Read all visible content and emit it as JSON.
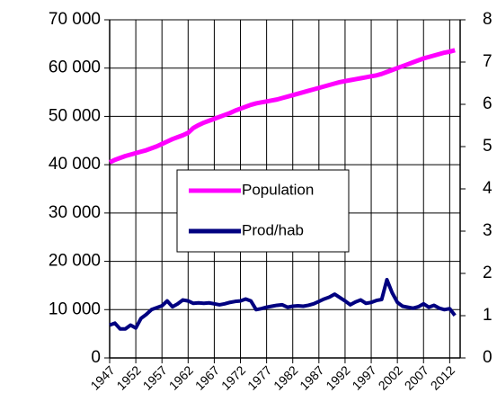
{
  "chart_data": {
    "type": "line",
    "x": [
      1947,
      1948,
      1949,
      1950,
      1951,
      1952,
      1953,
      1954,
      1955,
      1956,
      1957,
      1958,
      1959,
      1960,
      1961,
      1962,
      1963,
      1964,
      1965,
      1966,
      1967,
      1968,
      1969,
      1970,
      1971,
      1972,
      1973,
      1974,
      1975,
      1976,
      1977,
      1978,
      1979,
      1980,
      1981,
      1982,
      1983,
      1984,
      1985,
      1986,
      1987,
      1988,
      1989,
      1990,
      1991,
      1992,
      1993,
      1994,
      1995,
      1996,
      1997,
      1998,
      1999,
      2000,
      2001,
      2002,
      2003,
      2004,
      2005,
      2006,
      2007,
      2008,
      2009,
      2010,
      2011,
      2012,
      2013
    ],
    "series": [
      {
        "name": "Population",
        "color": "#ff00ff",
        "values": [
          40500,
          41000,
          41400,
          41800,
          42100,
          42400,
          42700,
          43000,
          43400,
          43800,
          44300,
          44800,
          45300,
          45700,
          46100,
          46600,
          47600,
          48200,
          48700,
          49100,
          49500,
          49900,
          50300,
          50700,
          51200,
          51600,
          52000,
          52400,
          52700,
          52900,
          53100,
          53300,
          53500,
          53800,
          54100,
          54400,
          54700,
          55000,
          55300,
          55600,
          55900,
          56200,
          56500,
          56800,
          57100,
          57300,
          57500,
          57700,
          57900,
          58100,
          58300,
          58500,
          58800,
          59200,
          59600,
          60000,
          60400,
          60800,
          61200,
          61600,
          62000,
          62300,
          62600,
          62900,
          63200,
          63400,
          63700
        ]
      },
      {
        "name": "Prod/hab",
        "color": "#000080",
        "values": [
          6800,
          7200,
          6000,
          6000,
          6800,
          6200,
          8200,
          9000,
          10000,
          10400,
          10800,
          11800,
          10600,
          11200,
          12000,
          11800,
          11300,
          11400,
          11300,
          11400,
          11200,
          11000,
          11200,
          11500,
          11700,
          11800,
          12200,
          11800,
          10000,
          10200,
          10500,
          10700,
          10900,
          11000,
          10500,
          10700,
          10800,
          10700,
          10900,
          11200,
          11700,
          12200,
          12600,
          13200,
          12500,
          11800,
          11000,
          11600,
          12000,
          11300,
          11500,
          11900,
          12100,
          16200,
          13500,
          11500,
          10700,
          10500,
          10300,
          10600,
          11200,
          10500,
          10900,
          10300,
          10000,
          10200,
          8800
        ]
      }
    ],
    "xlim": [
      1947,
      2014
    ],
    "xticks": [
      1947,
      1952,
      1957,
      1962,
      1967,
      1972,
      1977,
      1982,
      1987,
      1992,
      1997,
      2002,
      2007,
      2012
    ],
    "ylim": [
      0,
      70000
    ],
    "yticks": [
      0,
      {
        "value": 10000,
        "label": "10 000"
      },
      {
        "value": 20000,
        "label": "20 000"
      },
      {
        "value": 30000,
        "label": "30 000"
      },
      {
        "value": 40000,
        "label": "40 000"
      },
      {
        "value": 50000,
        "label": "50 000"
      },
      {
        "value": 60000,
        "label": "60 000"
      },
      {
        "value": 70000,
        "label": "70 000"
      }
    ],
    "y2lim": [
      0,
      8
    ],
    "y2ticks": [
      0,
      1,
      2,
      3,
      4,
      5,
      6,
      7,
      8
    ],
    "grid": true
  }
}
